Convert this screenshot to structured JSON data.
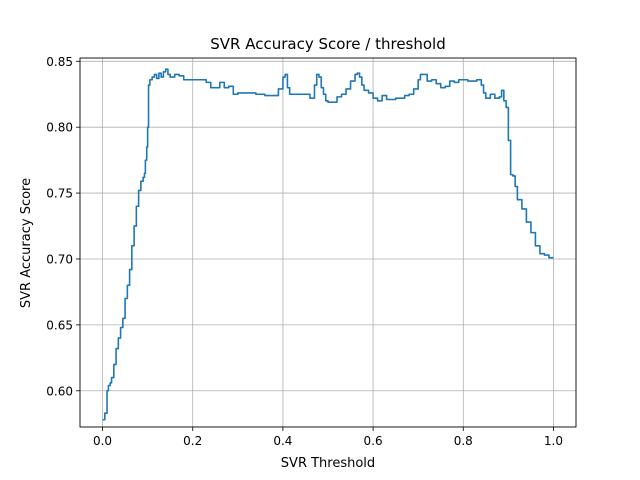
{
  "chart_data": {
    "type": "line",
    "title": "SVR Accuracy Score / threshold",
    "xlabel": "SVR Threshold",
    "ylabel": "SVR Accuracy Score",
    "xlim": [
      -0.05,
      1.05
    ],
    "ylim": [
      0.5725,
      0.8525
    ],
    "xticks": [
      0.0,
      0.2,
      0.4,
      0.6,
      0.8,
      1.0
    ],
    "xtick_labels": [
      "0.0",
      "0.2",
      "0.4",
      "0.6",
      "0.8",
      "1.0"
    ],
    "yticks": [
      0.6,
      0.65,
      0.7,
      0.75,
      0.8,
      0.85
    ],
    "ytick_labels": [
      "0.60",
      "0.65",
      "0.70",
      "0.75",
      "0.80",
      "0.85"
    ],
    "grid": true,
    "series": [
      {
        "color": "#1f77b4",
        "x": [
          0.0,
          0.005,
          0.01,
          0.013,
          0.017,
          0.02,
          0.025,
          0.03,
          0.035,
          0.04,
          0.045,
          0.05,
          0.055,
          0.06,
          0.065,
          0.07,
          0.075,
          0.08,
          0.085,
          0.09,
          0.093,
          0.095,
          0.098,
          0.1,
          0.102,
          0.105,
          0.11,
          0.115,
          0.12,
          0.125,
          0.13,
          0.135,
          0.14,
          0.145,
          0.15,
          0.16,
          0.17,
          0.18,
          0.2,
          0.22,
          0.23,
          0.24,
          0.25,
          0.26,
          0.27,
          0.28,
          0.29,
          0.3,
          0.32,
          0.34,
          0.36,
          0.38,
          0.39,
          0.4,
          0.405,
          0.41,
          0.415,
          0.42,
          0.44,
          0.46,
          0.47,
          0.475,
          0.48,
          0.485,
          0.49,
          0.495,
          0.5,
          0.51,
          0.52,
          0.53,
          0.54,
          0.55,
          0.56,
          0.565,
          0.57,
          0.575,
          0.58,
          0.59,
          0.6,
          0.61,
          0.62,
          0.63,
          0.65,
          0.67,
          0.68,
          0.69,
          0.7,
          0.705,
          0.71,
          0.72,
          0.73,
          0.74,
          0.75,
          0.76,
          0.77,
          0.78,
          0.79,
          0.8,
          0.81,
          0.82,
          0.83,
          0.84,
          0.845,
          0.85,
          0.86,
          0.87,
          0.88,
          0.885,
          0.89,
          0.895,
          0.9,
          0.905,
          0.91,
          0.915,
          0.92,
          0.93,
          0.94,
          0.95,
          0.96,
          0.97,
          0.98,
          0.99,
          1.0
        ],
        "y": [
          0.578,
          0.583,
          0.6,
          0.604,
          0.606,
          0.61,
          0.62,
          0.632,
          0.64,
          0.648,
          0.655,
          0.67,
          0.68,
          0.692,
          0.71,
          0.725,
          0.74,
          0.752,
          0.759,
          0.762,
          0.765,
          0.775,
          0.785,
          0.8,
          0.832,
          0.836,
          0.838,
          0.84,
          0.837,
          0.841,
          0.838,
          0.842,
          0.844,
          0.84,
          0.838,
          0.84,
          0.839,
          0.836,
          0.836,
          0.836,
          0.834,
          0.83,
          0.83,
          0.834,
          0.83,
          0.831,
          0.825,
          0.826,
          0.826,
          0.825,
          0.824,
          0.824,
          0.829,
          0.838,
          0.84,
          0.83,
          0.825,
          0.825,
          0.825,
          0.822,
          0.832,
          0.84,
          0.838,
          0.83,
          0.825,
          0.82,
          0.819,
          0.819,
          0.823,
          0.825,
          0.829,
          0.835,
          0.84,
          0.841,
          0.838,
          0.832,
          0.828,
          0.826,
          0.822,
          0.82,
          0.824,
          0.821,
          0.822,
          0.824,
          0.825,
          0.829,
          0.836,
          0.84,
          0.84,
          0.835,
          0.836,
          0.833,
          0.83,
          0.831,
          0.835,
          0.834,
          0.836,
          0.836,
          0.835,
          0.835,
          0.836,
          0.832,
          0.826,
          0.822,
          0.825,
          0.822,
          0.823,
          0.828,
          0.82,
          0.815,
          0.79,
          0.764,
          0.763,
          0.755,
          0.745,
          0.738,
          0.728,
          0.72,
          0.71,
          0.704,
          0.703,
          0.701,
          0.701
        ]
      }
    ]
  }
}
